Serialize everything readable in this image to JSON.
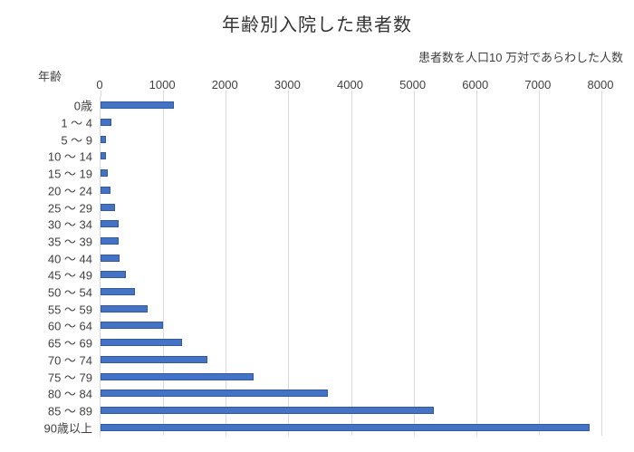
{
  "chart_data": {
    "type": "bar",
    "orientation": "horizontal",
    "title": "年齢別入院した患者数",
    "subtitle": "患者数を人口10 万対であらわした人数",
    "category_axis_label": "年齢",
    "categories": [
      "0歳",
      "1 ～ 4",
      "5 ～ 9",
      "10 ～ 14",
      "15 ～ 19",
      "20 ～ 24",
      "25 ～ 29",
      "30 ～ 34",
      "35 ～ 39",
      "40 ～ 44",
      "45 ～ 49",
      "50 ～ 54",
      "55 ～ 59",
      "60 ～ 64",
      "65 ～ 69",
      "70 ～ 74",
      "75 ～ 79",
      "80 ～ 84",
      "85 ～ 89",
      "90歳以上"
    ],
    "values": [
      1167,
      169,
      86,
      94,
      113,
      158,
      235,
      291,
      296,
      311,
      398,
      552,
      758,
      997,
      1305,
      1712,
      2448,
      3633,
      5326,
      7815
    ],
    "xlabel": "",
    "ylabel": "年齢",
    "value_axis": {
      "min": 0,
      "max": 8000,
      "tick_interval": 1000,
      "ticks": [
        0,
        1000,
        2000,
        3000,
        4000,
        5000,
        6000,
        7000,
        8000
      ],
      "position": "top"
    },
    "grid": true,
    "legend": "none",
    "bar_color": "#4472C4",
    "bar_border_color": "#35599F",
    "gridline_color": "#D9D9D9",
    "axis_line_color": "#D9D9D9",
    "background_color": "#FFFFFF",
    "text_color": "#3F3F3F"
  }
}
